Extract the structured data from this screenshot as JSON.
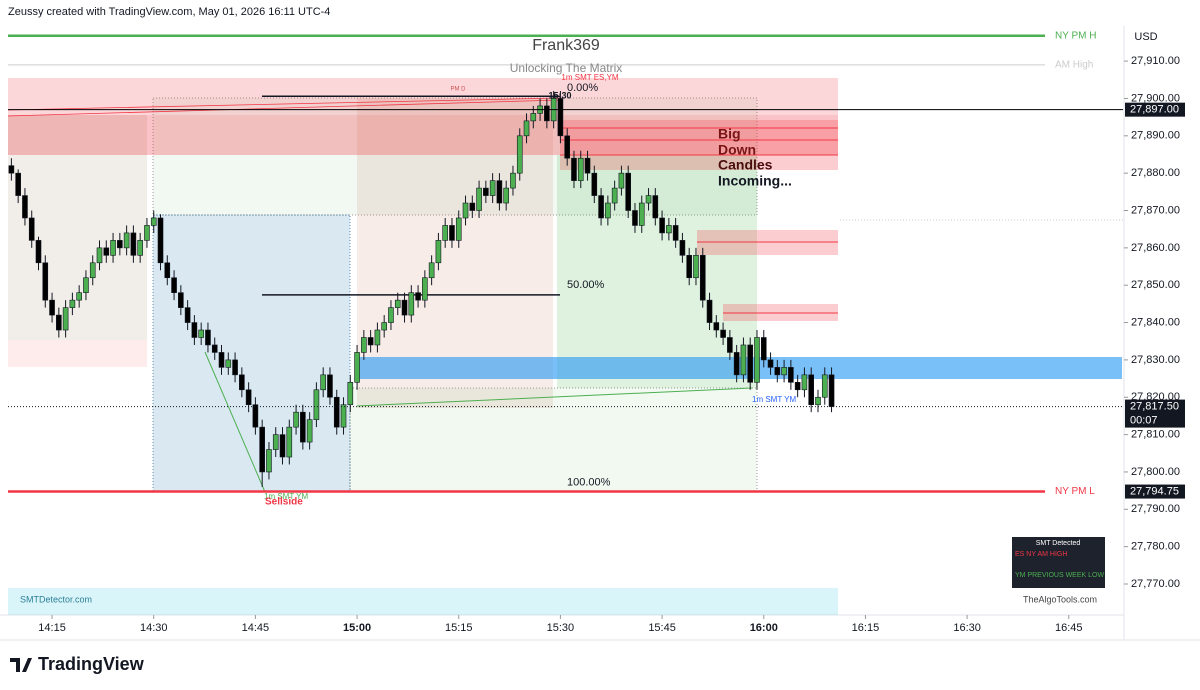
{
  "chart_data": {
    "type": "candlestick",
    "header": "Zeussy created with TradingView.com, May 01, 2026 16:11 UTC-4",
    "title": "Frank369",
    "subtitle": "Unlocking The Matrix",
    "currency": "USD",
    "up_color": "#4caf50",
    "down_color": "#000000",
    "xlim": [
      848.5,
      1013
    ],
    "ylim": [
      27761.7,
      27919.4
    ],
    "xticks": [
      {
        "value": 855,
        "label": "14:15"
      },
      {
        "value": 870,
        "label": "14:30"
      },
      {
        "value": 885,
        "label": "14:45"
      },
      {
        "value": 900,
        "label": "15:00"
      },
      {
        "value": 915,
        "label": "15:15"
      },
      {
        "value": 930,
        "label": "15:30"
      },
      {
        "value": 945,
        "label": "15:45"
      },
      {
        "value": 960,
        "label": "16:00"
      },
      {
        "value": 975,
        "label": "16:15"
      },
      {
        "value": 990,
        "label": "16:30"
      },
      {
        "value": 1005,
        "label": "16:45"
      }
    ],
    "yticks": [
      {
        "value": 27910,
        "label": "27,910.00"
      },
      {
        "value": 27900,
        "label": "27,900.00"
      },
      {
        "value": 27890,
        "label": "27,890.00"
      },
      {
        "value": 27880,
        "label": "27,880.00"
      },
      {
        "value": 27870,
        "label": "27,870.00"
      },
      {
        "value": 27860,
        "label": "27,860.00"
      },
      {
        "value": 27850,
        "label": "27,850.00"
      },
      {
        "value": 27840,
        "label": "27,840.00"
      },
      {
        "value": 27830,
        "label": "27,830.00"
      },
      {
        "value": 27820,
        "label": "27,820.00"
      },
      {
        "value": 27810,
        "label": "27,810.00"
      },
      {
        "value": 27800,
        "label": "27,800.00"
      },
      {
        "value": 27790,
        "label": "27,790.00"
      },
      {
        "value": 27780,
        "label": "27,780.00"
      },
      {
        "value": 27770,
        "label": "27,770.00"
      }
    ],
    "x": [
      849,
      850,
      851,
      852,
      853,
      854,
      855,
      856,
      857,
      858,
      859,
      860,
      861,
      862,
      863,
      864,
      865,
      866,
      867,
      868,
      869,
      870,
      871,
      872,
      873,
      874,
      875,
      876,
      877,
      878,
      879,
      880,
      881,
      882,
      883,
      884,
      885,
      886,
      887,
      888,
      889,
      890,
      891,
      892,
      893,
      894,
      895,
      896,
      897,
      898,
      899,
      900,
      901,
      902,
      903,
      904,
      905,
      906,
      907,
      908,
      909,
      910,
      911,
      912,
      913,
      914,
      915,
      916,
      917,
      918,
      919,
      920,
      921,
      922,
      923,
      924,
      925,
      926,
      927,
      928,
      929,
      930,
      931,
      932,
      933,
      934,
      935,
      936,
      937,
      938,
      939,
      940,
      941,
      942,
      943,
      944,
      945,
      946,
      947,
      948,
      949,
      950,
      951,
      952,
      953,
      954,
      955,
      956,
      957,
      958,
      959,
      960,
      961,
      962,
      963,
      964,
      965,
      966,
      967,
      968,
      969,
      970
    ],
    "open": [
      27882,
      27880,
      27874,
      27868,
      27862,
      27856,
      27846,
      27842,
      27838,
      27844,
      27846,
      27848,
      27852,
      27856,
      27860,
      27858,
      27862,
      27860,
      27864,
      27858,
      27862,
      27866,
      27868,
      27856,
      27852,
      27848,
      27844,
      27840,
      27836,
      27838,
      27834,
      27832,
      27828,
      27830,
      27826,
      27822,
      27818,
      27812,
      27800,
      27806,
      27810,
      27804,
      27812,
      27816,
      27808,
      27814,
      27822,
      27826,
      27820,
      27812,
      27818,
      27824,
      27832,
      27836,
      27834,
      27838,
      27840,
      27844,
      27846,
      27842,
      27848,
      27846,
      27852,
      27856,
      27862,
      27866,
      27862,
      27868,
      27872,
      27870,
      27876,
      27874,
      27878,
      27872,
      27876,
      27880,
      27890,
      27894,
      27896,
      27898,
      27894,
      27900,
      27890,
      27884,
      27878,
      27884,
      27880,
      27874,
      27868,
      27872,
      27876,
      27880,
      27870,
      27866,
      27872,
      27874,
      27868,
      27864,
      27866,
      27862,
      27858,
      27852,
      27858,
      27846,
      27840,
      27838,
      27836,
      27832,
      27826,
      27834,
      27824,
      27836,
      27830,
      27828,
      27826,
      27828,
      27824,
      27822,
      27826,
      27818,
      27820,
      27826
    ],
    "high": [
      27884,
      27881,
      27876,
      27870,
      27863,
      27858,
      27848,
      27844,
      27846,
      27848,
      27850,
      27854,
      27858,
      27862,
      27862,
      27864,
      27864,
      27866,
      27866,
      27864,
      27868,
      27870,
      27869,
      27858,
      27854,
      27850,
      27846,
      27842,
      27840,
      27840,
      27836,
      27834,
      27832,
      27832,
      27828,
      27824,
      27820,
      27814,
      27808,
      27812,
      27812,
      27814,
      27818,
      27818,
      27816,
      27824,
      27828,
      27828,
      27822,
      27820,
      27826,
      27834,
      27838,
      27838,
      27840,
      27842,
      27846,
      27848,
      27848,
      27850,
      27850,
      27854,
      27858,
      27864,
      27868,
      27868,
      27870,
      27874,
      27874,
      27878,
      27878,
      27880,
      27880,
      27878,
      27882,
      27892,
      27896,
      27898,
      27900,
      27900,
      27902,
      27902,
      27892,
      27886,
      27886,
      27886,
      27882,
      27876,
      27874,
      27878,
      27882,
      27882,
      27872,
      27874,
      27876,
      27876,
      27870,
      27868,
      27868,
      27864,
      27860,
      27860,
      27860,
      27848,
      27842,
      27840,
      27838,
      27834,
      27836,
      27836,
      27838,
      27838,
      27832,
      27830,
      27830,
      27830,
      27826,
      27828,
      27828,
      27822,
      27828,
      27828
    ],
    "low": [
      27878,
      27872,
      27866,
      27860,
      27854,
      27844,
      27840,
      27836,
      27836,
      27842,
      27844,
      27846,
      27850,
      27854,
      27856,
      27856,
      27858,
      27858,
      27856,
      27856,
      27860,
      27864,
      27854,
      27850,
      27846,
      27842,
      27838,
      27834,
      27834,
      27832,
      27830,
      27826,
      27826,
      27824,
      27820,
      27816,
      27810,
      27796,
      27798,
      27804,
      27802,
      27802,
      27810,
      27806,
      27806,
      27812,
      27820,
      27818,
      27810,
      27810,
      27816,
      27822,
      27830,
      27832,
      27832,
      27836,
      27838,
      27842,
      27840,
      27840,
      27844,
      27844,
      27850,
      27854,
      27860,
      27860,
      27860,
      27866,
      27868,
      27868,
      27872,
      27872,
      27870,
      27870,
      27874,
      27878,
      27888,
      27892,
      27894,
      27892,
      27892,
      27888,
      27882,
      27876,
      27876,
      27878,
      27872,
      27866,
      27866,
      27870,
      27874,
      27868,
      27864,
      27864,
      27870,
      27866,
      27862,
      27862,
      27860,
      27856,
      27850,
      27850,
      27844,
      27838,
      27836,
      27834,
      27830,
      27824,
      27824,
      27822,
      27822,
      27828,
      27826,
      27824,
      27824,
      27822,
      27820,
      27820,
      27816,
      27816,
      27818,
      27816
    ],
    "close": [
      27880,
      27874,
      27868,
      27862,
      27856,
      27846,
      27842,
      27838,
      27844,
      27846,
      27848,
      27852,
      27856,
      27860,
      27858,
      27862,
      27860,
      27864,
      27858,
      27862,
      27866,
      27868,
      27856,
      27852,
      27848,
      27844,
      27840,
      27836,
      27838,
      27834,
      27832,
      27828,
      27830,
      27826,
      27822,
      27818,
      27812,
      27800,
      27806,
      27810,
      27804,
      27812,
      27816,
      27808,
      27814,
      27822,
      27826,
      27820,
      27812,
      27818,
      27824,
      27832,
      27836,
      27834,
      27838,
      27840,
      27844,
      27846,
      27842,
      27848,
      27846,
      27852,
      27856,
      27862,
      27866,
      27862,
      27868,
      27872,
      27870,
      27876,
      27874,
      27878,
      27872,
      27876,
      27880,
      27890,
      27894,
      27896,
      27898,
      27894,
      27900,
      27890,
      27884,
      27878,
      27884,
      27880,
      27874,
      27868,
      27872,
      27876,
      27880,
      27870,
      27866,
      27872,
      27874,
      27868,
      27864,
      27866,
      27862,
      27858,
      27852,
      27858,
      27846,
      27840,
      27838,
      27836,
      27832,
      27826,
      27834,
      27824,
      27836,
      27830,
      27828,
      27826,
      27828,
      27824,
      27822,
      27826,
      27818,
      27820,
      27826,
      27817.5
    ],
    "levels": [
      {
        "name": "NY PM H",
        "value": 27916.8,
        "color": "#4caf50"
      },
      {
        "name": "AM High",
        "value": 27909,
        "color": "#cccccc"
      },
      {
        "value": 27897,
        "label": "27,897.00",
        "color": "#000000"
      },
      {
        "name": "NY PM L",
        "value": 27794.75,
        "label": "27,794.75",
        "color": "#f23645"
      }
    ],
    "current_price": {
      "value": 27817.5,
      "label": "27,817.50",
      "countdown": "00:07"
    },
    "fib_levels": [
      {
        "value": 27900.6,
        "label": "0.00%"
      },
      {
        "value": 27847.4,
        "label": "50.00%"
      },
      {
        "value": 27795,
        "label": "100.00%"
      }
    ],
    "annotations": {
      "pm_d": "PM D",
      "time_mark": "15:30",
      "smt_top": "1m SMT ES,YM",
      "smt_low": "1m SMT YM",
      "smt_mid": "1m SMT YM",
      "sellside": "Sellside",
      "big_down": [
        "Big",
        "Down",
        "Candles",
        "Incoming..."
      ],
      "site": "SMTDetector.com",
      "watermark": "TheAlgoTools.com",
      "brand": "TradingView"
    },
    "smt_table": {
      "title": "SMT Detected",
      "rows": [
        "ES NY AM HIGH",
        "YM PREVIOUS WEEK LOW"
      ]
    }
  }
}
